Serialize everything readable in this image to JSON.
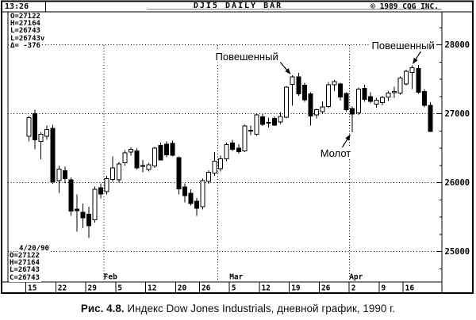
{
  "terminal": {
    "time": "13:26",
    "title": "DJI5 DAILY BAR",
    "copyright": "© 1989 CQG INC."
  },
  "quote_top": {
    "lines": [
      "O=27122",
      "H=27164",
      "L=26743",
      "L=26743v",
      "Δ= -376"
    ]
  },
  "quote_bottom": {
    "date": "4/20/90",
    "lines": [
      "O=27122",
      "H=27164",
      "L=26743",
      "C=26743"
    ]
  },
  "annotations": [
    {
      "id": "hangman1",
      "text": "Повешенный",
      "target_date": "3/19"
    },
    {
      "id": "hangman2",
      "text": "Повешенный",
      "target_date": "4/17"
    },
    {
      "id": "hammer",
      "text": "Молот",
      "target_date": "4/2"
    }
  ],
  "caption": {
    "figure": "Рис. 4.8.",
    "text": " Индекс Dow Jones Industrials, дневной график, 1990 г."
  },
  "chart_data": {
    "type": "candlestick",
    "title": "DJI5 DAILY BAR",
    "ylim": [
      24550,
      28480
    ],
    "y_ticks": [
      25000,
      26000,
      27000,
      28000
    ],
    "y_minor_tick_step": 250,
    "grid": "dotted",
    "x_ticks": [
      {
        "date": "1/15",
        "label": "15"
      },
      {
        "date": "1/22",
        "label": "22"
      },
      {
        "date": "1/29",
        "label": "29"
      },
      {
        "date": "2/5",
        "label": "5"
      },
      {
        "date": "2/12",
        "label": "12"
      },
      {
        "date": "2/20",
        "label": "20"
      },
      {
        "date": "2/26",
        "label": "26"
      },
      {
        "date": "3/5",
        "label": "5"
      },
      {
        "date": "3/12",
        "label": "12"
      },
      {
        "date": "3/19",
        "label": "19"
      },
      {
        "date": "3/26",
        "label": "26"
      },
      {
        "date": "4/2",
        "label": "2"
      },
      {
        "date": "4/9",
        "label": "9"
      },
      {
        "date": "4/16",
        "label": "16"
      }
    ],
    "month_labels": [
      {
        "label": "Feb",
        "date": "2/1"
      },
      {
        "label": "Mar",
        "date": "3/5"
      },
      {
        "label": "Apr",
        "date": "4/2"
      }
    ],
    "month_gridlines": [
      "2/1",
      "3/1",
      "4/2"
    ],
    "candles_format": [
      "date",
      "open",
      "high",
      "low",
      "close"
    ],
    "candles": [
      [
        "1/15",
        26670,
        26965,
        26600,
        26940
      ],
      [
        "1/16",
        27000,
        27060,
        26480,
        26620
      ],
      [
        "1/17",
        26600,
        26730,
        26340,
        26700
      ],
      [
        "1/18",
        26670,
        26830,
        26620,
        26770
      ],
      [
        "1/19",
        26790,
        26840,
        25985,
        26010
      ],
      [
        "1/22",
        26030,
        26240,
        25850,
        26195
      ],
      [
        "1/23",
        26175,
        26230,
        25990,
        26060
      ],
      [
        "1/24",
        26040,
        26075,
        25515,
        25585
      ],
      [
        "1/25",
        25615,
        25830,
        25285,
        25590
      ],
      [
        "1/26",
        25570,
        25695,
        25340,
        25490
      ],
      [
        "1/29",
        25540,
        25650,
        25195,
        25375
      ],
      [
        "1/30",
        25460,
        25940,
        25420,
        25905
      ],
      [
        "1/31",
        25925,
        25990,
        25770,
        25835
      ],
      [
        "2/1",
        25870,
        26100,
        25830,
        26060
      ],
      [
        "2/2",
        26045,
        26380,
        26010,
        26215
      ],
      [
        "2/5",
        26040,
        26300,
        26000,
        26270
      ],
      [
        "2/6",
        26290,
        26470,
        26250,
        26430
      ],
      [
        "2/7",
        26440,
        26510,
        26390,
        26480
      ],
      [
        "2/8",
        26460,
        26500,
        26190,
        26210
      ],
      [
        "2/9",
        26250,
        26330,
        26150,
        26240
      ],
      [
        "2/12",
        26190,
        26290,
        26160,
        26260
      ],
      [
        "2/13",
        26240,
        26520,
        26210,
        26500
      ],
      [
        "2/14",
        26540,
        26580,
        26320,
        26330
      ],
      [
        "2/15",
        26560,
        26600,
        26370,
        26400
      ],
      [
        "2/16",
        26570,
        26610,
        26380,
        26395
      ],
      [
        "2/20",
        26360,
        26380,
        25830,
        25910
      ],
      [
        "2/21",
        25935,
        25990,
        25710,
        25810
      ],
      [
        "2/22",
        25845,
        25900,
        25665,
        25695
      ],
      [
        "2/23",
        25730,
        25775,
        25520,
        25625
      ],
      [
        "2/26",
        25650,
        26060,
        25610,
        26030
      ],
      [
        "2/27",
        26020,
        26180,
        25985,
        26150
      ],
      [
        "2/28",
        26140,
        26440,
        26100,
        26310
      ],
      [
        "3/1",
        26200,
        26390,
        26160,
        26345
      ],
      [
        "3/2",
        26345,
        26580,
        26310,
        26550
      ],
      [
        "3/5",
        26575,
        26620,
        26455,
        26480
      ],
      [
        "3/6",
        26500,
        26560,
        26420,
        26450
      ],
      [
        "3/7",
        26460,
        26840,
        26440,
        26820
      ],
      [
        "3/8",
        26760,
        26830,
        26690,
        26750
      ],
      [
        "3/9",
        26700,
        27000,
        26680,
        26985
      ],
      [
        "3/12",
        26955,
        27005,
        26820,
        26845
      ],
      [
        "3/13",
        26860,
        26940,
        26800,
        26875
      ],
      [
        "3/14",
        26930,
        26960,
        26820,
        26835
      ],
      [
        "3/15",
        26880,
        27025,
        26850,
        26960
      ],
      [
        "3/16",
        26950,
        27400,
        26930,
        27385
      ],
      [
        "3/19",
        27425,
        27555,
        27115,
        27535
      ],
      [
        "3/20",
        27535,
        27590,
        27260,
        27290
      ],
      [
        "3/21",
        27415,
        27450,
        27170,
        27200
      ],
      [
        "3/22",
        27285,
        27310,
        26830,
        26965
      ],
      [
        "3/23",
        26985,
        27075,
        26930,
        27055
      ],
      [
        "3/26",
        27030,
        27180,
        26995,
        27095
      ],
      [
        "3/27",
        27105,
        27460,
        27080,
        27420
      ],
      [
        "3/28",
        27420,
        27490,
        27330,
        27465
      ],
      [
        "3/29",
        27430,
        27450,
        27190,
        27240
      ],
      [
        "3/30",
        27295,
        27310,
        27030,
        27060
      ],
      [
        "4/2",
        27075,
        27105,
        26730,
        26995
      ],
      [
        "4/3",
        27010,
        27380,
        26985,
        27355
      ],
      [
        "4/4",
        27370,
        27420,
        27175,
        27205
      ],
      [
        "4/5",
        27250,
        27310,
        27150,
        27180
      ],
      [
        "4/6",
        27140,
        27230,
        27085,
        27195
      ],
      [
        "4/9",
        27160,
        27260,
        27120,
        27235
      ],
      [
        "4/10",
        27240,
        27330,
        27185,
        27300
      ],
      [
        "4/11",
        27310,
        27390,
        27230,
        27320
      ],
      [
        "4/12",
        27300,
        27540,
        27275,
        27515
      ],
      [
        "4/16",
        27430,
        27640,
        27410,
        27615
      ],
      [
        "4/17",
        27595,
        27700,
        27355,
        27665
      ],
      [
        "4/18",
        27655,
        27705,
        27285,
        27310
      ],
      [
        "4/19",
        27320,
        27355,
        27090,
        27119
      ],
      [
        "4/20",
        27122,
        27164,
        26743,
        26743
      ]
    ]
  }
}
